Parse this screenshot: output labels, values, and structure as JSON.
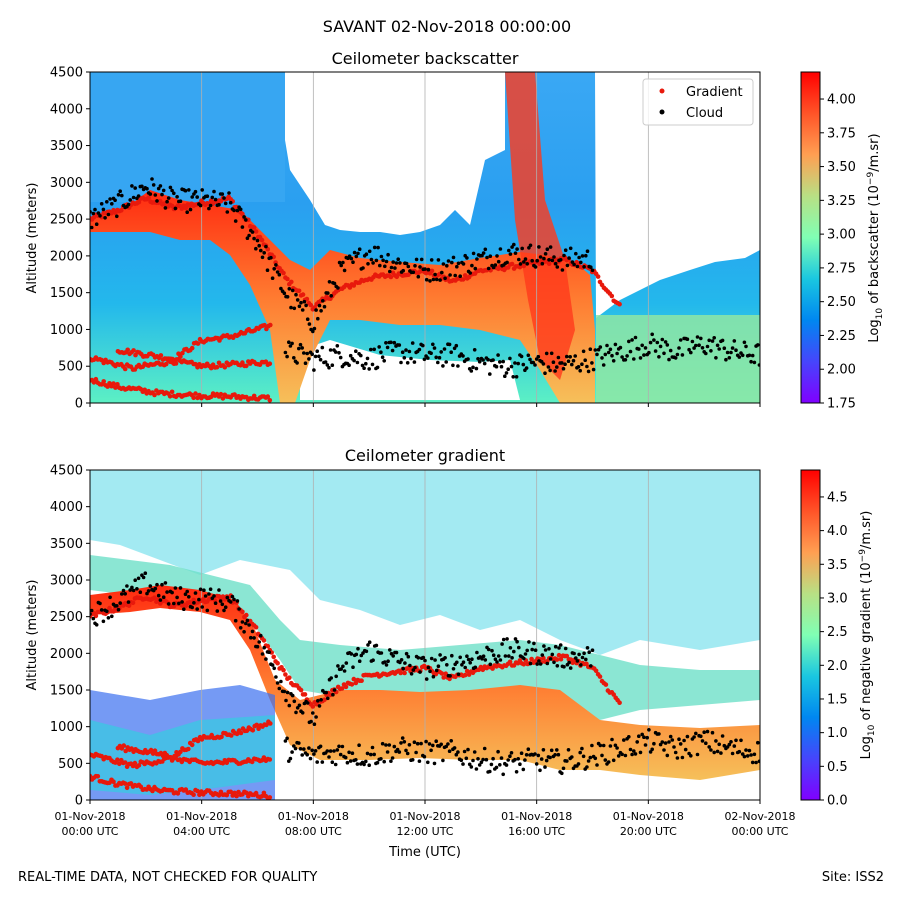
{
  "suptitle": "SAVANT 02-Nov-2018 00:00:00",
  "footer": {
    "note": "REAL-TIME DATA, NOT CHECKED FOR QUALITY",
    "site": "Site: ISS2"
  },
  "chart_data": [
    {
      "type": "heatmap",
      "title": "Ceilometer backscatter",
      "ylabel": "Altitude (meters)",
      "ylim": [
        0,
        4500
      ],
      "yticks": [
        0,
        500,
        1000,
        1500,
        2000,
        2500,
        3000,
        3500,
        4000,
        4500
      ],
      "xlim_hours": [
        0,
        24
      ],
      "xticks_hours": [
        0,
        4,
        8,
        12,
        16,
        20,
        24
      ],
      "show_x_ticklabels": false,
      "colorbar": {
        "label_prefix": "Log",
        "label_sub": "10",
        "label_mid": " of backscatter (10",
        "label_sup": "−9",
        "label_suffix": "/m.sr)",
        "range": [
          1.75,
          4.2
        ],
        "ticks": [
          "1.75",
          "2.00",
          "2.25",
          "2.50",
          "2.75",
          "3.00",
          "3.25",
          "3.50",
          "3.75",
          "4.00"
        ]
      },
      "legend": {
        "position": "top-right",
        "entries": [
          {
            "label": "Gradient",
            "color": "#e8190c"
          },
          {
            "label": "Cloud",
            "color": "#000000"
          }
        ]
      },
      "gradient_layers": [
        {
          "name": "boundary-layer-top",
          "points": [
            [
              0,
              2500
            ],
            [
              1,
              2620
            ],
            [
              2,
              2780
            ],
            [
              3,
              2650
            ],
            [
              4,
              2720
            ],
            [
              5,
              2780
            ],
            [
              6,
              2300
            ],
            [
              7,
              1700
            ],
            [
              8,
              1300
            ],
            [
              9,
              1550
            ],
            [
              10,
              1700
            ],
            [
              11,
              1750
            ],
            [
              12,
              1800
            ],
            [
              13,
              1650
            ],
            [
              14,
              1800
            ],
            [
              15,
              1850
            ],
            [
              16,
              1900
            ],
            [
              17,
              1950
            ],
            [
              18,
              1800
            ],
            [
              19,
              1300
            ]
          ]
        },
        {
          "name": "residual-layer-1",
          "points": [
            [
              0,
              620
            ],
            [
              1,
              520
            ],
            [
              1.5,
              470
            ],
            [
              3,
              570
            ],
            [
              4,
              500
            ],
            [
              5,
              520
            ],
            [
              6,
              550
            ],
            [
              6.5,
              550
            ]
          ]
        },
        {
          "name": "residual-layer-2",
          "points": [
            [
              1,
              720
            ],
            [
              3,
              600
            ],
            [
              4,
              850
            ],
            [
              5,
              900
            ],
            [
              6,
              1000
            ],
            [
              6.5,
              1050
            ]
          ]
        },
        {
          "name": "surface-layer",
          "points": [
            [
              0,
              320
            ],
            [
              1,
              220
            ],
            [
              2.5,
              130
            ],
            [
              4,
              100
            ],
            [
              5,
              90
            ],
            [
              6.5,
              60
            ]
          ]
        }
      ],
      "cloud_bands": [
        {
          "name": "cloud-top",
          "points": [
            [
              0,
              2500
            ],
            [
              1,
              2700
            ],
            [
              2,
              2950
            ],
            [
              3,
              2750
            ],
            [
              4,
              2750
            ],
            [
              5,
              2700
            ],
            [
              6,
              2200
            ],
            [
              7,
              1500
            ],
            [
              8,
              1100
            ],
            [
              9,
              1800
            ],
            [
              10,
              2050
            ],
            [
              11,
              1900
            ],
            [
              12,
              1800
            ],
            [
              13,
              1850
            ],
            [
              14,
              1950
            ],
            [
              15,
              2050
            ],
            [
              16,
              2000
            ],
            [
              17,
              1950
            ],
            [
              18,
              1950
            ]
          ]
        },
        {
          "name": "cloud-low",
          "points": [
            [
              7,
              700
            ],
            [
              8,
              600
            ],
            [
              9,
              650
            ],
            [
              10,
              600
            ],
            [
              11,
              700
            ],
            [
              12,
              650
            ],
            [
              13,
              650
            ],
            [
              14,
              550
            ],
            [
              15,
              500
            ],
            [
              16,
              550
            ],
            [
              17,
              520
            ],
            [
              18,
              600
            ],
            [
              19,
              700
            ],
            [
              20,
              800
            ],
            [
              21,
              700
            ],
            [
              22,
              800
            ],
            [
              23,
              700
            ],
            [
              24,
              650
            ]
          ]
        }
      ]
    },
    {
      "type": "heatmap",
      "title": "Ceilometer gradient",
      "ylabel": "Altitude (meters)",
      "xlabel": "Time (UTC)",
      "ylim": [
        0,
        4500
      ],
      "yticks": [
        0,
        500,
        1000,
        1500,
        2000,
        2500,
        3000,
        3500,
        4000,
        4500
      ],
      "xlim_hours": [
        0,
        24
      ],
      "xticks_hours": [
        0,
        4,
        8,
        12,
        16,
        20,
        24
      ],
      "show_x_ticklabels": true,
      "xtick_labels": [
        [
          "01-Nov-2018",
          "00:00 UTC"
        ],
        [
          "01-Nov-2018",
          "04:00 UTC"
        ],
        [
          "01-Nov-2018",
          "08:00 UTC"
        ],
        [
          "01-Nov-2018",
          "12:00 UTC"
        ],
        [
          "01-Nov-2018",
          "16:00 UTC"
        ],
        [
          "01-Nov-2018",
          "20:00 UTC"
        ],
        [
          "02-Nov-2018",
          "00:00 UTC"
        ]
      ],
      "colorbar": {
        "label_prefix": "Log",
        "label_sub": "10",
        "label_mid": " of negative gradient (10",
        "label_sup": "−9",
        "label_suffix": "/m.sr)",
        "range": [
          0.0,
          4.9
        ],
        "ticks": [
          "0.0",
          "0.5",
          "1.0",
          "1.5",
          "2.0",
          "2.5",
          "3.0",
          "3.5",
          "4.0",
          "4.5"
        ]
      },
      "gradient_layers": [
        {
          "name": "boundary-layer-top",
          "points": [
            [
              0,
              2500
            ],
            [
              1,
              2620
            ],
            [
              2,
              2780
            ],
            [
              3,
              2650
            ],
            [
              4,
              2720
            ],
            [
              5,
              2780
            ],
            [
              6,
              2300
            ],
            [
              7,
              1700
            ],
            [
              8,
              1300
            ],
            [
              9,
              1550
            ],
            [
              10,
              1700
            ],
            [
              11,
              1750
            ],
            [
              12,
              1800
            ],
            [
              13,
              1650
            ],
            [
              14,
              1800
            ],
            [
              15,
              1850
            ],
            [
              16,
              1900
            ],
            [
              17,
              1950
            ],
            [
              18,
              1800
            ],
            [
              19,
              1300
            ]
          ]
        },
        {
          "name": "residual-layer-1",
          "points": [
            [
              0,
              620
            ],
            [
              1,
              520
            ],
            [
              1.5,
              470
            ],
            [
              3,
              570
            ],
            [
              4,
              500
            ],
            [
              5,
              520
            ],
            [
              6,
              550
            ],
            [
              6.5,
              550
            ]
          ]
        },
        {
          "name": "residual-layer-2",
          "points": [
            [
              1,
              720
            ],
            [
              3,
              600
            ],
            [
              4,
              850
            ],
            [
              5,
              900
            ],
            [
              6,
              1000
            ],
            [
              6.5,
              1050
            ]
          ]
        },
        {
          "name": "surface-layer",
          "points": [
            [
              0,
              320
            ],
            [
              1,
              220
            ],
            [
              2.5,
              130
            ],
            [
              4,
              100
            ],
            [
              5,
              90
            ],
            [
              6.5,
              60
            ]
          ]
        }
      ],
      "cloud_bands": [
        {
          "name": "cloud-top",
          "points": [
            [
              0,
              2500
            ],
            [
              1,
              2700
            ],
            [
              2,
              2950
            ],
            [
              3,
              2750
            ],
            [
              4,
              2750
            ],
            [
              5,
              2700
            ],
            [
              6,
              2200
            ],
            [
              7,
              1500
            ],
            [
              8,
              1100
            ],
            [
              9,
              1800
            ],
            [
              10,
              2050
            ],
            [
              11,
              1900
            ],
            [
              12,
              1800
            ],
            [
              13,
              1850
            ],
            [
              14,
              1950
            ],
            [
              15,
              2050
            ],
            [
              16,
              2000
            ],
            [
              17,
              1950
            ],
            [
              18,
              1950
            ]
          ]
        },
        {
          "name": "cloud-low",
          "points": [
            [
              7,
              700
            ],
            [
              8,
              600
            ],
            [
              9,
              650
            ],
            [
              10,
              600
            ],
            [
              11,
              700
            ],
            [
              12,
              650
            ],
            [
              13,
              650
            ],
            [
              14,
              550
            ],
            [
              15,
              500
            ],
            [
              16,
              550
            ],
            [
              17,
              520
            ],
            [
              18,
              600
            ],
            [
              19,
              700
            ],
            [
              20,
              800
            ],
            [
              21,
              700
            ],
            [
              22,
              800
            ],
            [
              23,
              700
            ],
            [
              24,
              650
            ]
          ]
        }
      ]
    }
  ]
}
